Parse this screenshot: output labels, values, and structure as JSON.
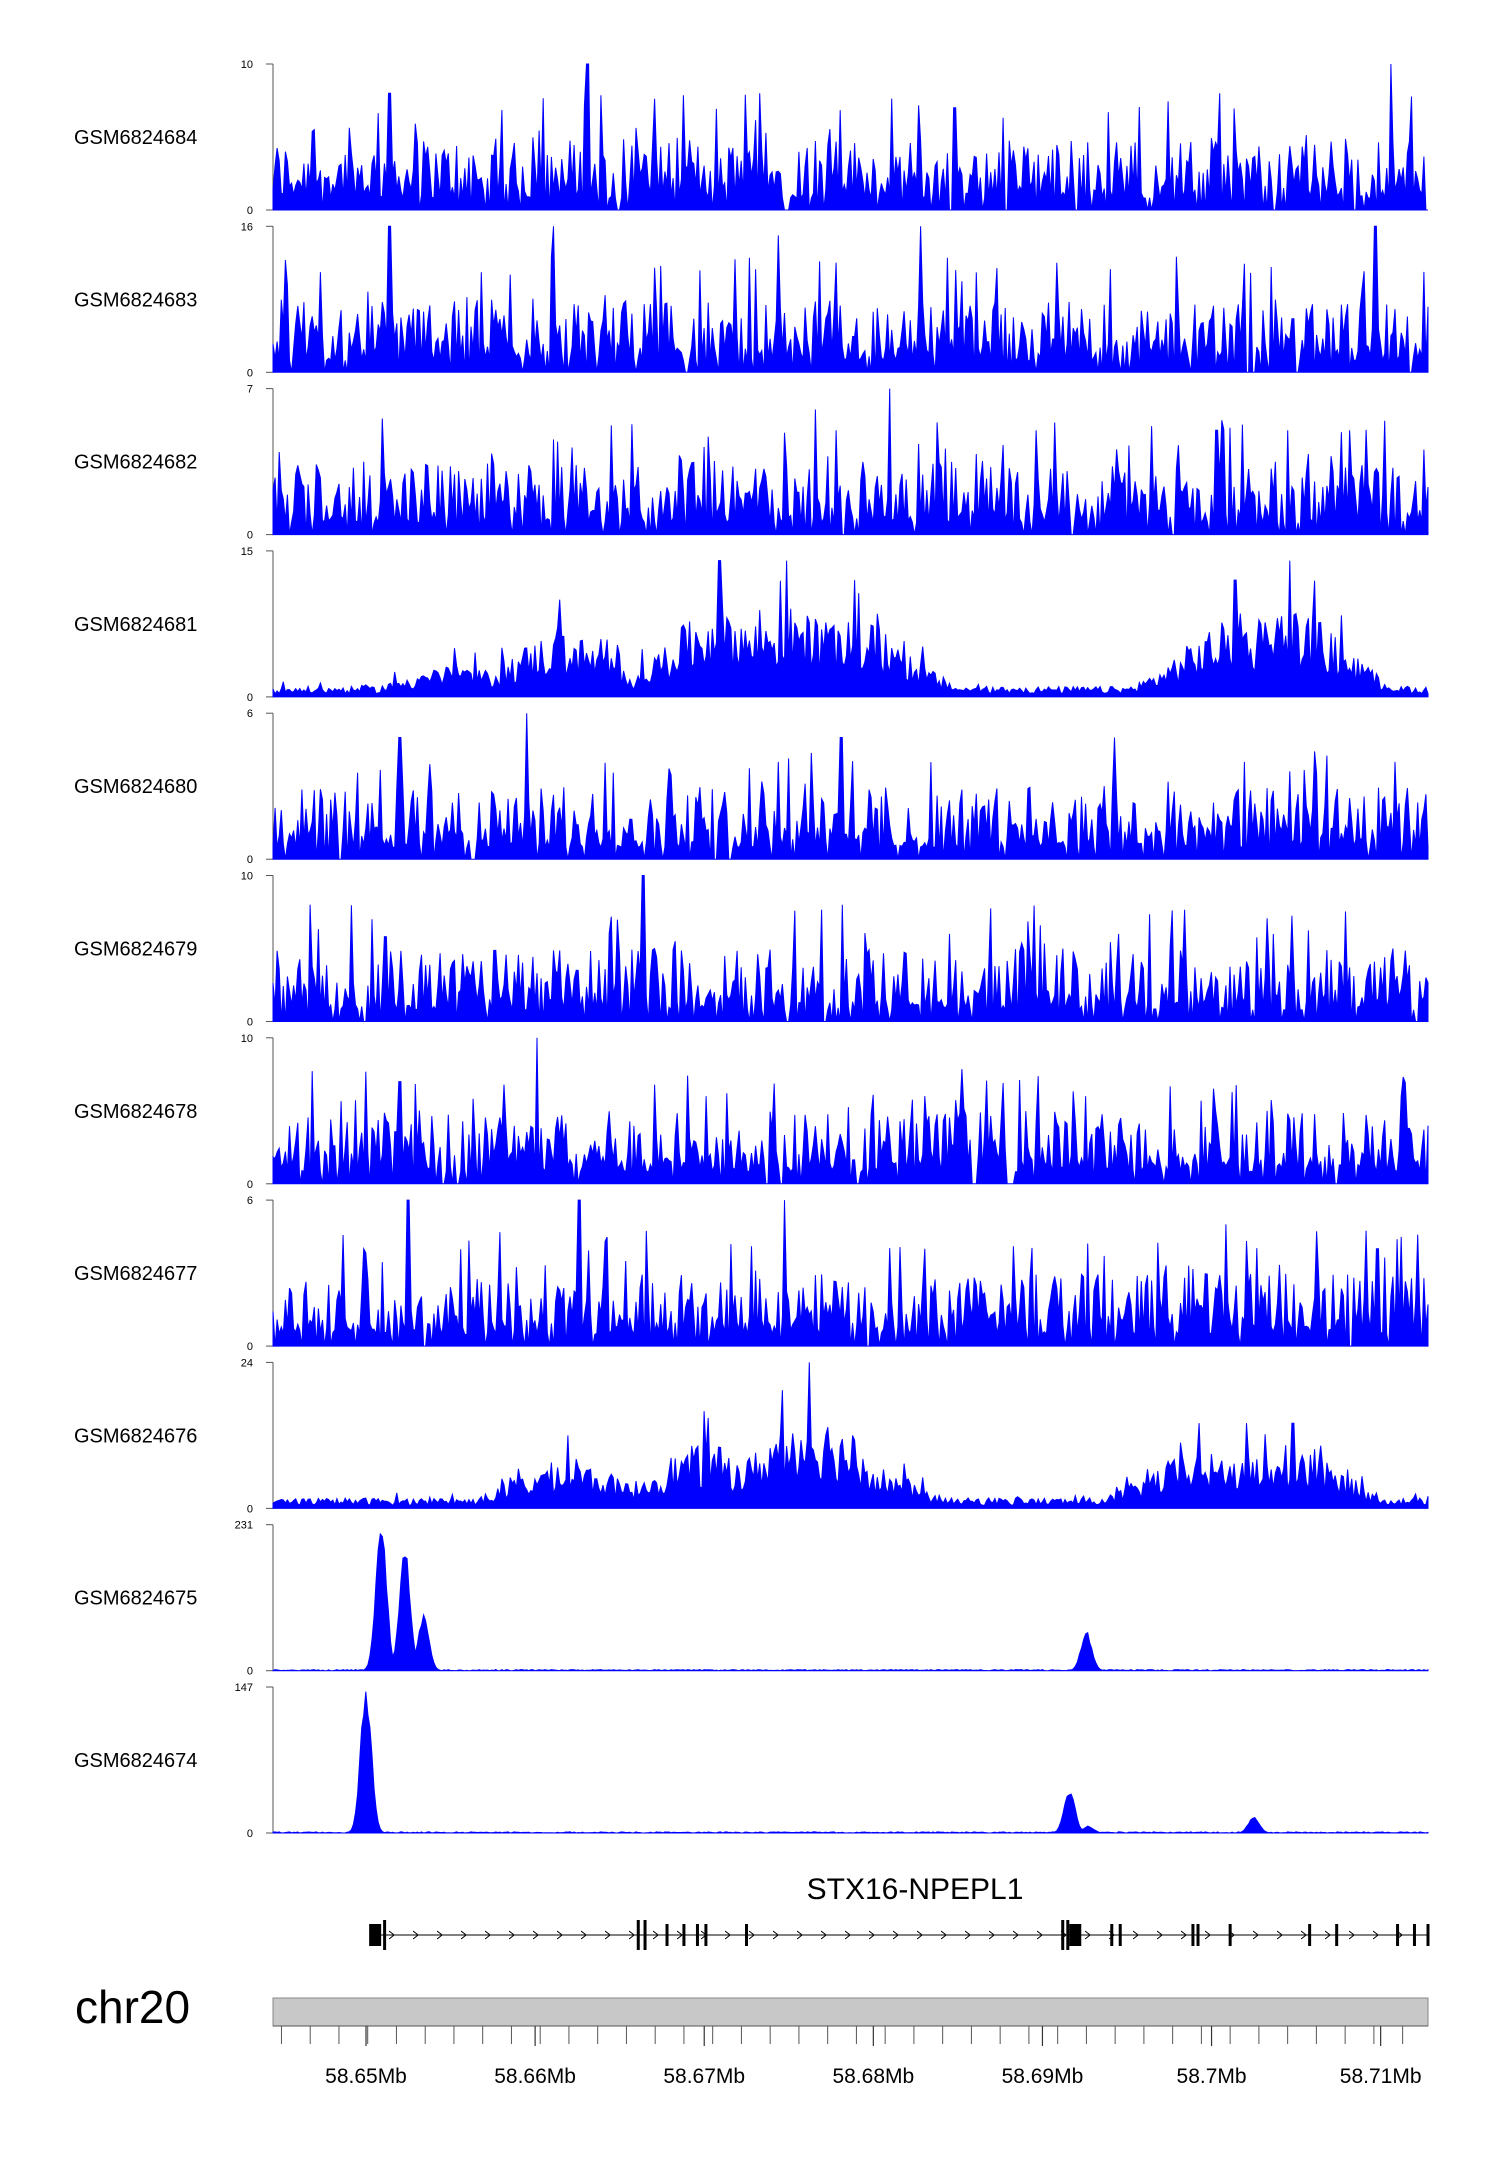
{
  "chart_data": {
    "type": "area",
    "title": "",
    "chromosome": "chr20",
    "x_range": [
      58.6445,
      58.7128
    ],
    "x_unit": "Mb",
    "x_ticks": [
      58.65,
      58.66,
      58.67,
      58.68,
      58.69,
      58.7,
      58.71
    ],
    "x_tick_labels": [
      "58.65Mb",
      "58.66Mb",
      "58.67Mb",
      "58.68Mb",
      "58.69Mb",
      "58.7Mb",
      "58.71Mb"
    ],
    "fill_color": "#0000ff",
    "series": [
      {
        "name": "GSM6824684",
        "ymax": 10,
        "ymin_label": "0",
        "ymax_label": "10",
        "profile": "noisy",
        "peaks": [
          [
            58.6514,
            8
          ],
          [
            58.6631,
            10
          ],
          [
            58.6733,
            8
          ],
          [
            58.6848,
            7
          ],
          [
            58.7005,
            8
          ],
          [
            58.7106,
            10
          ],
          [
            58.7129,
            8
          ]
        ]
      },
      {
        "name": "GSM6824683",
        "ymax": 16,
        "ymin_label": "0",
        "ymax_label": "16",
        "profile": "noisy",
        "peaks": [
          [
            58.6514,
            16
          ],
          [
            58.6611,
            16
          ],
          [
            58.6744,
            15
          ],
          [
            58.6828,
            16
          ],
          [
            58.6908,
            12
          ],
          [
            58.7097,
            16
          ],
          [
            58.7126,
            11
          ]
        ]
      },
      {
        "name": "GSM6824682",
        "ymax": 7,
        "ymin_label": "0",
        "ymax_label": "7",
        "profile": "noisy",
        "peaks": [
          [
            58.6766,
            6
          ],
          [
            58.6778,
            5
          ],
          [
            58.681,
            7
          ],
          [
            58.6896,
            5
          ],
          [
            58.7003,
            5
          ],
          [
            58.7045,
            5
          ],
          [
            58.7082,
            5
          ]
        ]
      },
      {
        "name": "GSM6824681",
        "ymax": 15,
        "ymin_label": "0",
        "ymax_label": "15",
        "profile": "broad",
        "peaks": [
          [
            58.6552,
            5
          ],
          [
            58.6615,
            10
          ],
          [
            58.6709,
            14
          ],
          [
            58.6749,
            14
          ],
          [
            58.6789,
            12
          ],
          [
            58.7014,
            12
          ],
          [
            58.7046,
            14
          ]
        ]
      },
      {
        "name": "GSM6824680",
        "ymax": 6,
        "ymin_label": "0",
        "ymax_label": "6",
        "profile": "noisy",
        "peaks": [
          [
            58.652,
            5
          ],
          [
            58.6595,
            6
          ],
          [
            58.6744,
            4
          ],
          [
            58.6781,
            5
          ],
          [
            58.6943,
            5
          ],
          [
            58.7019,
            4
          ],
          [
            58.7108,
            4
          ]
        ]
      },
      {
        "name": "GSM6824679",
        "ymax": 10,
        "ymin_label": "0",
        "ymax_label": "10",
        "profile": "noisy",
        "peaks": [
          [
            58.6504,
            7
          ],
          [
            58.6664,
            10
          ],
          [
            58.6782,
            8
          ],
          [
            58.6845,
            6
          ],
          [
            58.6945,
            6
          ],
          [
            58.7037,
            6
          ],
          [
            58.7107,
            5
          ]
        ]
      },
      {
        "name": "GSM6824678",
        "ymax": 10,
        "ymin_label": "0",
        "ymax_label": "10",
        "profile": "noisy",
        "peaks": [
          [
            58.652,
            7
          ],
          [
            58.6601,
            10
          ],
          [
            58.6701,
            6
          ],
          [
            58.683,
            6
          ],
          [
            58.6926,
            6
          ],
          [
            58.7002,
            5
          ],
          [
            58.7112,
            6
          ]
        ]
      },
      {
        "name": "GSM6824677",
        "ymax": 6,
        "ymin_label": "0",
        "ymax_label": "6",
        "profile": "noisy",
        "peaks": [
          [
            58.6499,
            4
          ],
          [
            58.6525,
            6
          ],
          [
            58.6626,
            6
          ],
          [
            58.6747,
            6
          ],
          [
            58.683,
            4
          ],
          [
            58.7008,
            5
          ],
          [
            58.7098,
            4
          ]
        ]
      },
      {
        "name": "GSM6824676",
        "ymax": 24,
        "ymin_label": "0",
        "ymax_label": "24",
        "profile": "broad",
        "peaks": [
          [
            58.6619,
            12
          ],
          [
            58.67,
            16
          ],
          [
            58.6762,
            24
          ],
          [
            58.6788,
            12
          ],
          [
            58.6993,
            14
          ],
          [
            58.7021,
            14
          ],
          [
            58.7048,
            14
          ]
        ]
      },
      {
        "name": "GSM6824675",
        "ymax": 231,
        "ymin_label": "0",
        "ymax_label": "231",
        "profile": "peak",
        "peaks": [
          [
            58.6509,
            231
          ],
          [
            58.6523,
            200
          ],
          [
            58.6534,
            90
          ],
          [
            58.6926,
            62
          ]
        ]
      },
      {
        "name": "GSM6824674",
        "ymax": 147,
        "ymin_label": "0",
        "ymax_label": "147",
        "profile": "peak",
        "peaks": [
          [
            58.65,
            147
          ],
          [
            58.6916,
            45
          ],
          [
            58.7025,
            17
          ],
          [
            58.6927,
            7
          ]
        ]
      }
    ],
    "gene": {
      "name": "STX16-NPEPL1",
      "start": 58.6503,
      "end": 58.7128,
      "strand": "+",
      "exons": [
        58.6506,
        58.6511,
        58.6661,
        58.6665,
        58.6678,
        58.6688,
        58.6696,
        58.6701,
        58.6725,
        58.6912,
        58.6915,
        58.692,
        58.6941,
        58.6946,
        58.6989,
        58.6992,
        58.7011,
        58.7058,
        58.7074,
        58.711,
        58.712,
        58.7128
      ]
    }
  }
}
